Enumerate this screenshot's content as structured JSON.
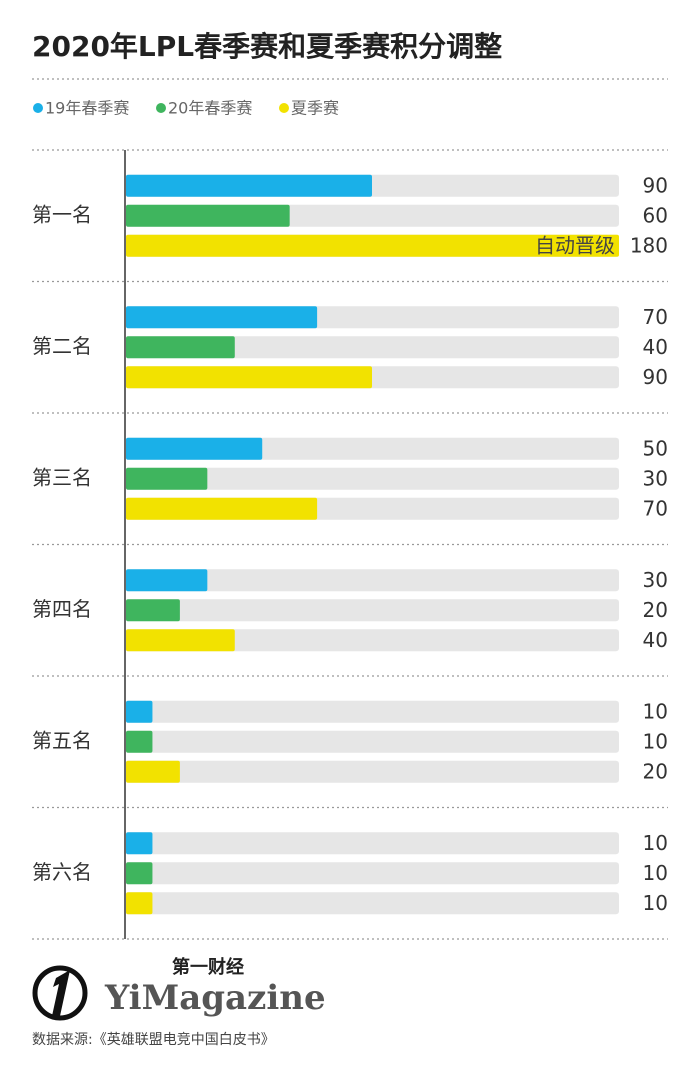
{
  "chart_data": {
    "type": "bar",
    "orientation": "horizontal",
    "title": "2020年LPL春季赛和夏季赛积分调整",
    "categories": [
      "第一名",
      "第二名",
      "第三名",
      "第四名",
      "第五名",
      "第六名"
    ],
    "series": [
      {
        "name": "19年春季赛",
        "color": "#1ab0e8",
        "values": [
          90,
          70,
          50,
          30,
          10,
          10
        ]
      },
      {
        "name": "20年春季赛",
        "color": "#3fb55e",
        "values": [
          60,
          40,
          30,
          20,
          10,
          10
        ]
      },
      {
        "name": "夏季赛",
        "color": "#f2e200",
        "values": [
          180,
          90,
          70,
          40,
          20,
          10
        ]
      }
    ],
    "xlim": [
      0,
      180
    ],
    "annotation": "自动晋级",
    "brand": {
      "cn": "第一财经",
      "en": "YiMagazine"
    },
    "source": "数据来源:《英雄联盟电竞中国白皮书》"
  }
}
